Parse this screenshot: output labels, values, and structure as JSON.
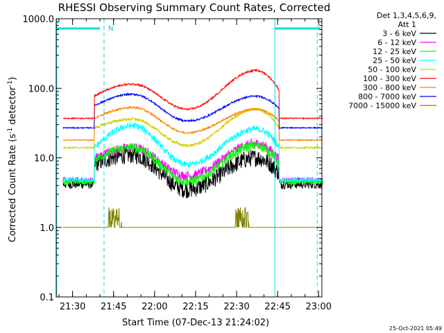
{
  "chart_data": {
    "type": "line",
    "title": "RHESSI Observing Summary Count Rates, Corrected",
    "xlabel": "Start Time (07-Dec-13 21:24:02)",
    "ylabel_main": "Corrected Count Rate (s",
    "ylabel_sup1": "-1",
    "ylabel_mid": " detector",
    "ylabel_sup2": "-1",
    "ylabel_end": ")",
    "y_scale": "log",
    "ylim": [
      0.1,
      1000
    ],
    "xlim_minutes": [
      21.4,
      23.02
    ],
    "x_ticks": [
      {
        "label": "21:30",
        "t": 21.5
      },
      {
        "label": "21:45",
        "t": 21.75
      },
      {
        "label": "22:00",
        "t": 22.0
      },
      {
        "label": "22:15",
        "t": 22.25
      },
      {
        "label": "22:30",
        "t": 22.5
      },
      {
        "label": "22:45",
        "t": 22.75
      },
      {
        "label": "23:00",
        "t": 23.0
      }
    ],
    "y_ticks": [
      {
        "label": "0.1",
        "v": 0.1
      },
      {
        "label": "1.0",
        "v": 1
      },
      {
        "label": "10.0",
        "v": 10
      },
      {
        "label": "100.0",
        "v": 100
      },
      {
        "label": "1000.0",
        "v": 1000
      }
    ],
    "legend_title_1": "Det 1,3,4,5,6,9,",
    "legend_title_2": "Att 1",
    "legend_placement": "right",
    "flag_label": "N",
    "timestamp": "25-Oct-2021 05:49",
    "series": [
      {
        "name": "3 - 6 keV",
        "color": "#000000",
        "base": 4.2,
        "peak1": 11,
        "valley": 3.5,
        "peak2": 10,
        "noise": 0.18
      },
      {
        "name": "6 - 12 keV",
        "color": "#ff00ff",
        "base": 4.8,
        "peak1": 14,
        "valley": 5.5,
        "peak2": 16,
        "noise": 0.1
      },
      {
        "name": "12 - 25 keV",
        "color": "#00ff00",
        "base": 4.5,
        "peak1": 14,
        "valley": 4.6,
        "peak2": 15,
        "noise": 0.1
      },
      {
        "name": "25 - 50 keV",
        "color": "#00ffff",
        "base": 4.8,
        "peak1": 29,
        "valley": 8,
        "peak2": 26,
        "noise": 0.07
      },
      {
        "name": "50 - 100 keV",
        "color": "#d0d000",
        "base": 14,
        "peak1": 36,
        "valley": 15,
        "peak2": 50,
        "noise": 0.03
      },
      {
        "name": "100 - 300 keV",
        "color": "#ff0000",
        "base": 37,
        "peak1": 115,
        "valley": 50,
        "peak2": 180,
        "noise": 0.02
      },
      {
        "name": "300 - 800 keV",
        "color": "#ff8000",
        "base": 18,
        "peak1": 53,
        "valley": 23,
        "peak2": 50,
        "noise": 0.02
      },
      {
        "name": "800 - 7000 keV",
        "color": "#0000ff",
        "base": 27,
        "peak1": 82,
        "valley": 34,
        "peak2": 77,
        "noise": 0.02
      },
      {
        "name": "7000 - 15000 keV",
        "color": "#808000",
        "base": 1.0,
        "peak1": 1.0,
        "valley": 1.0,
        "peak2": 1.0,
        "noise": 0.0
      }
    ]
  }
}
